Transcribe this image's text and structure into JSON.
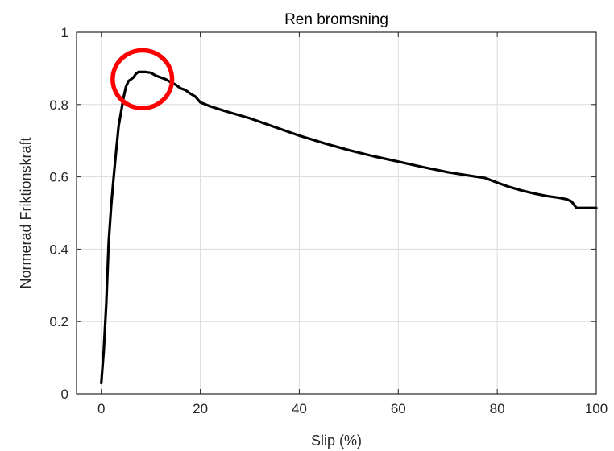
{
  "chart_data": {
    "type": "line",
    "title": "Ren bromsning",
    "xlabel": "Slip (%)",
    "ylabel": "Normerad Friktionskraft",
    "xlim": [
      -5,
      100
    ],
    "ylim": [
      0,
      1
    ],
    "xticks": [
      0,
      20,
      40,
      60,
      80,
      100
    ],
    "yticks": [
      0,
      0.2,
      0.4,
      0.6,
      0.8,
      1
    ],
    "xtick_labels": [
      "0",
      "20",
      "40",
      "60",
      "80",
      "100"
    ],
    "ytick_labels": [
      "0",
      "0.2",
      "0.4",
      "0.6",
      "0.8",
      "1"
    ],
    "grid": true,
    "series": [
      {
        "color": "#000000",
        "x": [
          0,
          0.5,
          1,
          1.5,
          2,
          2.5,
          3,
          3.5,
          4,
          4.5,
          5,
          5.5,
          6,
          6.5,
          7,
          7.5,
          8,
          9,
          10,
          11,
          12,
          13,
          14,
          15,
          16,
          17,
          18,
          19,
          20,
          22,
          25,
          30,
          35,
          40,
          45,
          50,
          55,
          60,
          65,
          70,
          75,
          77.5,
          80,
          82.5,
          85,
          87.5,
          90,
          92.5,
          94,
          95,
          96,
          98,
          100
        ],
        "y": [
          0.03,
          0.12,
          0.25,
          0.42,
          0.52,
          0.6,
          0.67,
          0.74,
          0.78,
          0.82,
          0.85,
          0.865,
          0.87,
          0.875,
          0.885,
          0.89,
          0.89,
          0.89,
          0.888,
          0.88,
          0.875,
          0.87,
          0.862,
          0.855,
          0.845,
          0.84,
          0.83,
          0.822,
          0.806,
          0.795,
          0.782,
          0.762,
          0.738,
          0.714,
          0.693,
          0.674,
          0.657,
          0.642,
          0.627,
          0.613,
          0.602,
          0.597,
          0.584,
          0.572,
          0.562,
          0.554,
          0.547,
          0.542,
          0.538,
          0.532,
          0.514,
          0.514,
          0.514
        ]
      }
    ],
    "annotations": [
      {
        "type": "circle",
        "x": 8.3,
        "y": 0.87,
        "rx": 6,
        "ry": 0.08,
        "color": "#ff0000"
      }
    ]
  }
}
